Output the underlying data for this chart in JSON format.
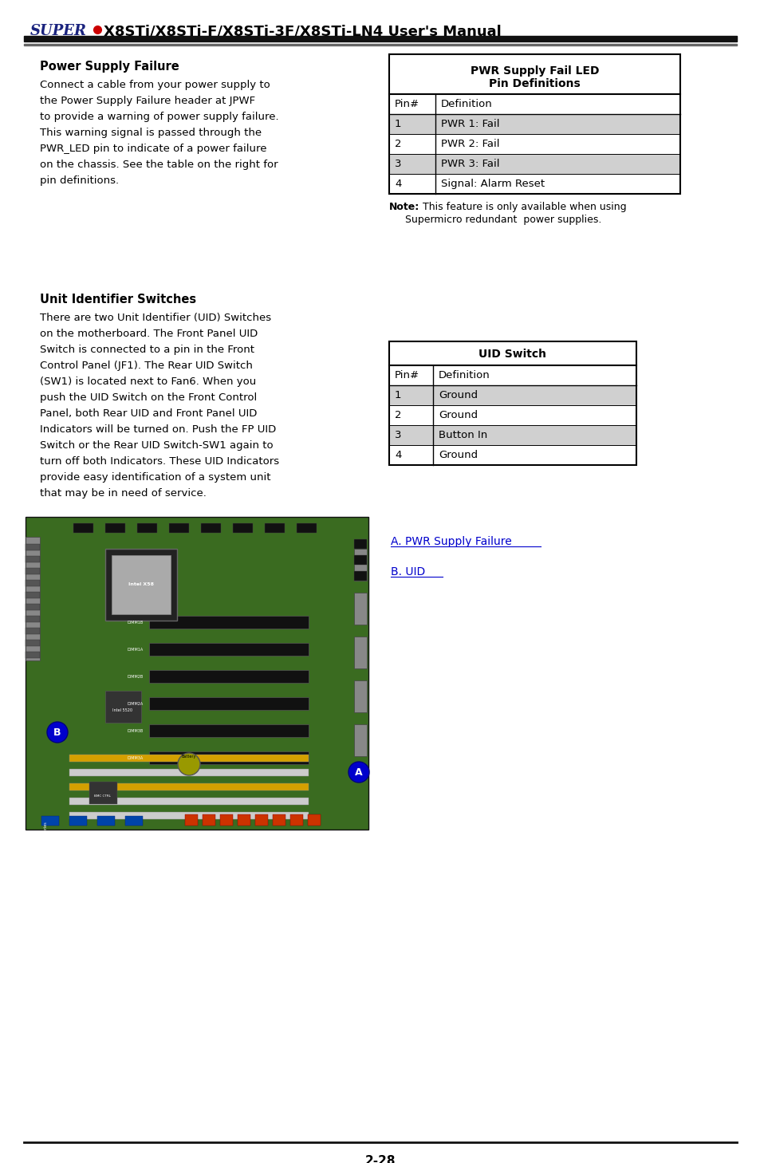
{
  "header_text": "X8STi/X8STi-F/X8STi-3F/X8STi-LN4 User's Manual",
  "super_text": "SUPER",
  "footer_text": "2-28",
  "section1_title": "Power Supply Failure",
  "section1_body": [
    "Connect a cable from your power supply to",
    "the Power Supply Failure header at JPWF",
    "to provide a warning of power supply failure.",
    "This warning signal is passed through the",
    "PWR_LED pin to indicate of a power failure",
    "on the chassis. See the table on the right for",
    "pin definitions."
  ],
  "table1_title1": "PWR Supply Fail LED",
  "table1_title2": "Pin Definitions",
  "table1_header": [
    "Pin#",
    "Definition"
  ],
  "table1_rows": [
    [
      "1",
      "PWR 1: Fail"
    ],
    [
      "2",
      "PWR 2: Fail"
    ],
    [
      "3",
      "PWR 3: Fail"
    ],
    [
      "4",
      "Signal: Alarm Reset"
    ]
  ],
  "table1_note_bold": "Note:",
  "table1_note_rest": " This feature is only available when using",
  "table1_note2": "Supermicro redundant  power supplies.",
  "section2_title": "Unit Identifier Switches",
  "section2_body": [
    "There are two Unit Identifier (UID) Switches",
    "on the motherboard. The Front Panel UID",
    "Switch is connected to a pin in the Front",
    "Control Panel (JF1). The Rear UID Switch",
    "(SW1) is located next to Fan6. When you",
    "push the UID Switch on the Front Control",
    "Panel, both Rear UID and Front Panel UID",
    "Indicators will be turned on. Push the FP UID",
    "Switch or the Rear UID Switch-SW1 again to",
    "turn off both Indicators. These UID Indicators",
    "provide easy identification of a system unit",
    "that may be in need of service."
  ],
  "table2_title": "UID Switch",
  "table2_header": [
    "Pin#",
    "Definition"
  ],
  "table2_rows": [
    [
      "1",
      "Ground"
    ],
    [
      "2",
      "Ground"
    ],
    [
      "3",
      "Button In"
    ],
    [
      "4",
      "Ground"
    ]
  ],
  "link_a": "A. PWR Supply Failure",
  "link_b": "B. UID",
  "bg_color": "#ffffff",
  "table_border_color": "#000000",
  "table_shaded_color": "#d0d0d0",
  "text_color": "#000000",
  "super_color": "#1a237e",
  "dot_color": "#cc0000",
  "link_color": "#0000cc",
  "board_green": "#3a6b20",
  "board_dark": "#1a3a0e"
}
